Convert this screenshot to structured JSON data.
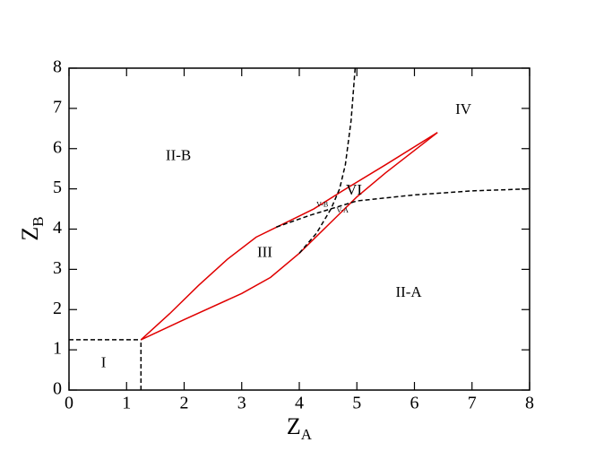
{
  "chart_data": {
    "type": "line",
    "x_label": "Z",
    "x_label_sub": "A",
    "y_label": "Z",
    "y_label_sub": "B",
    "xlim": [
      0,
      8
    ],
    "ylim": [
      0,
      8
    ],
    "xticks": [
      0,
      1,
      2,
      3,
      4,
      5,
      6,
      7,
      8
    ],
    "yticks": [
      0,
      1,
      2,
      3,
      4,
      5,
      6,
      7,
      8
    ],
    "series": [
      {
        "color": "#000000",
        "dash": true,
        "x": [
          0,
          1.25
        ],
        "values": [
          1.25,
          1.25
        ]
      },
      {
        "color": "#000000",
        "dash": true,
        "x": [
          1.25,
          1.25
        ],
        "values": [
          0,
          1.25
        ]
      },
      {
        "color": "#e00000",
        "dash": false,
        "x": [
          1.25,
          1.75,
          2.25,
          2.75,
          3.25,
          3.75,
          4.25,
          4.75,
          5.5,
          6.4
        ],
        "values": [
          1.25,
          1.9,
          2.6,
          3.25,
          3.8,
          4.15,
          4.5,
          4.95,
          5.6,
          6.4
        ]
      },
      {
        "color": "#e00000",
        "dash": false,
        "x": [
          1.25,
          2,
          3,
          3.5,
          4,
          4.5,
          5,
          5.5,
          6.4
        ],
        "values": [
          1.25,
          1.75,
          2.4,
          2.8,
          3.4,
          4.1,
          4.8,
          5.4,
          6.4
        ]
      },
      {
        "color": "#000000",
        "dash": true,
        "x": [
          4.0,
          4.3,
          4.55,
          4.7,
          4.8,
          4.9,
          4.97
        ],
        "values": [
          3.4,
          3.9,
          4.5,
          5.0,
          5.6,
          6.7,
          8
        ]
      },
      {
        "color": "#000000",
        "dash": true,
        "x": [
          3.6,
          4.2,
          5,
          6,
          7,
          8
        ],
        "values": [
          4.05,
          4.35,
          4.7,
          4.85,
          4.95,
          5.0
        ]
      }
    ],
    "region_labels": [
      {
        "text": "I",
        "x": 0.6,
        "y": 0.65
      },
      {
        "text": "II-B",
        "x": 1.9,
        "y": 5.8
      },
      {
        "text": "IV",
        "x": 6.85,
        "y": 6.95
      },
      {
        "text": "VI",
        "x": 4.95,
        "y": 4.95
      },
      {
        "text": "III",
        "x": 3.4,
        "y": 3.4
      },
      {
        "text": "II-A",
        "x": 5.9,
        "y": 2.4
      }
    ],
    "small_labels": [
      {
        "text": "V-B",
        "x": 4.4,
        "y": 4.6
      },
      {
        "text": "V-A",
        "x": 4.75,
        "y": 4.45
      }
    ]
  }
}
